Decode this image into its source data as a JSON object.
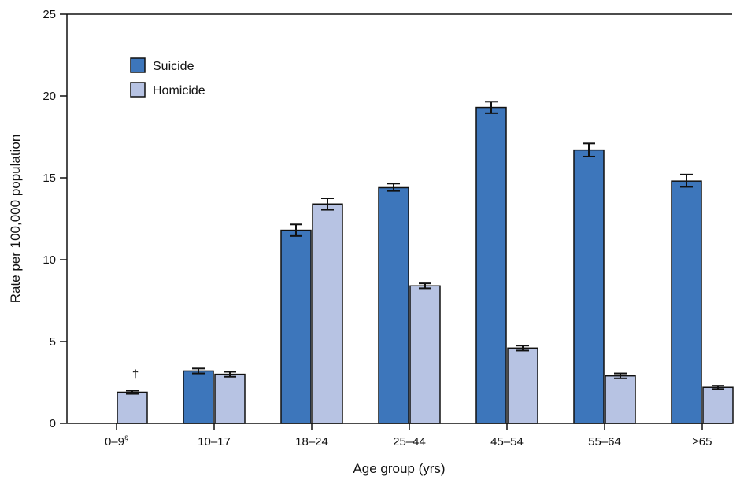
{
  "chart_data": {
    "type": "bar",
    "xlabel": "Age group (yrs)",
    "ylabel": "Rate per 100,000 population",
    "ylim": [
      0,
      25
    ],
    "yticks": [
      0,
      5,
      10,
      15,
      20,
      25
    ],
    "grid": false,
    "legend_position": "top-left",
    "categories": [
      "0–9§",
      "10–17",
      "18–24",
      "25–44",
      "45–54",
      "55–64",
      "≥65"
    ],
    "category_labels": [
      {
        "main": "0–9",
        "sup": "§"
      },
      {
        "main": "10–17",
        "sup": ""
      },
      {
        "main": "18–24",
        "sup": ""
      },
      {
        "main": "25–44",
        "sup": ""
      },
      {
        "main": "45–54",
        "sup": ""
      },
      {
        "main": "55–64",
        "sup": ""
      },
      {
        "main": "≥65",
        "sup": ""
      }
    ],
    "series": [
      {
        "name": "Suicide",
        "color": "#3d76bb",
        "values": [
          null,
          3.2,
          11.8,
          14.4,
          19.3,
          16.7,
          14.8
        ],
        "ci_low": [
          null,
          3.05,
          11.45,
          14.2,
          18.95,
          16.3,
          14.45
        ],
        "ci_high": [
          null,
          3.35,
          12.15,
          14.65,
          19.65,
          17.1,
          15.2
        ]
      },
      {
        "name": "Homicide",
        "color": "#b7c3e3",
        "values": [
          1.9,
          3.0,
          13.4,
          8.4,
          4.6,
          2.9,
          2.2
        ],
        "ci_low": [
          1.8,
          2.85,
          13.05,
          8.25,
          4.45,
          2.75,
          2.1
        ],
        "ci_high": [
          2.0,
          3.15,
          13.75,
          8.55,
          4.75,
          3.05,
          2.3
        ]
      }
    ],
    "annotations": [
      {
        "category": "0–9§",
        "series": "Suicide",
        "text": "†"
      }
    ]
  }
}
